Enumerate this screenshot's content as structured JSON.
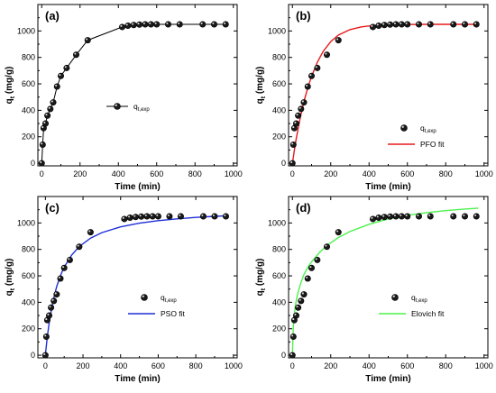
{
  "chart_data": [
    {
      "type": "line",
      "panel_label": "(a)",
      "xlabel": "Time (min)",
      "ylabel": "q",
      "ylabel_sub": "t",
      "ylabel_unit": " (mg/g)",
      "xlim": [
        -20,
        1020
      ],
      "ylim": [
        -20,
        1200
      ],
      "xticks": [
        0,
        200,
        400,
        600,
        800,
        1000
      ],
      "yticks": [
        0,
        200,
        400,
        600,
        800,
        1000
      ],
      "grid": false,
      "legend_position": "center-right",
      "series": [
        {
          "name": "q",
          "name_sub": "t,exp",
          "kind": "line-markers",
          "color": "#000000",
          "x": [
            0,
            5,
            10,
            20,
            30,
            45,
            60,
            80,
            100,
            130,
            180,
            240,
            420,
            450,
            480,
            510,
            540,
            570,
            600,
            660,
            720,
            840,
            900,
            960
          ],
          "y": [
            0,
            140,
            265,
            300,
            360,
            410,
            460,
            580,
            660,
            720,
            820,
            930,
            1030,
            1040,
            1045,
            1048,
            1050,
            1050,
            1050,
            1050,
            1050,
            1050,
            1050,
            1050
          ]
        }
      ]
    },
    {
      "type": "line",
      "panel_label": "(b)",
      "xlabel": "Time (min)",
      "ylabel": "q",
      "ylabel_sub": "t",
      "ylabel_unit": " (mg/g)",
      "xlim": [
        -20,
        1020
      ],
      "ylim": [
        -20,
        1200
      ],
      "xticks": [
        0,
        200,
        400,
        600,
        800,
        1000
      ],
      "yticks": [
        0,
        200,
        400,
        600,
        800,
        1000
      ],
      "grid": false,
      "legend_position": "center-right",
      "series": [
        {
          "name": "q",
          "name_sub": "t,exp",
          "kind": "markers",
          "color": "#000000",
          "x": [
            0,
            5,
            10,
            20,
            30,
            45,
            60,
            80,
            100,
            130,
            180,
            240,
            420,
            450,
            480,
            510,
            540,
            570,
            600,
            660,
            720,
            840,
            900,
            960
          ],
          "y": [
            0,
            140,
            265,
            300,
            360,
            410,
            460,
            580,
            660,
            720,
            820,
            930,
            1030,
            1040,
            1045,
            1048,
            1050,
            1050,
            1050,
            1050,
            1050,
            1050,
            1050,
            1050
          ]
        },
        {
          "name": "PFO fit",
          "kind": "line",
          "color": "#e8191b",
          "x": [
            0,
            10,
            20,
            40,
            60,
            80,
            100,
            130,
            160,
            200,
            240,
            300,
            360,
            420,
            500,
            600,
            700,
            800,
            900,
            970
          ],
          "y": [
            0,
            98,
            187,
            340,
            466,
            571,
            657,
            764,
            845,
            920,
            969,
            1010,
            1031,
            1041,
            1046,
            1049,
            1050,
            1050,
            1050,
            1050
          ]
        }
      ]
    },
    {
      "type": "line",
      "panel_label": "(c)",
      "xlabel": "Time (min)",
      "ylabel": "q",
      "ylabel_sub": "t",
      "ylabel_unit": " (mg/g)",
      "xlim": [
        -40,
        1020
      ],
      "ylim": [
        -20,
        1200
      ],
      "xticks": [
        0,
        200,
        400,
        600,
        800,
        1000
      ],
      "yticks": [
        0,
        200,
        400,
        600,
        800,
        1000
      ],
      "grid": false,
      "legend_position": "center-right",
      "series": [
        {
          "name": "q",
          "name_sub": "t,exp",
          "kind": "markers",
          "color": "#000000",
          "x": [
            0,
            5,
            10,
            20,
            30,
            45,
            60,
            80,
            100,
            130,
            180,
            240,
            420,
            450,
            480,
            510,
            540,
            570,
            600,
            660,
            720,
            840,
            900,
            960
          ],
          "y": [
            0,
            140,
            265,
            300,
            360,
            410,
            460,
            580,
            660,
            720,
            820,
            930,
            1030,
            1040,
            1045,
            1048,
            1050,
            1050,
            1050,
            1050,
            1050,
            1050,
            1050,
            1050
          ]
        },
        {
          "name": "PSO fit",
          "kind": "line",
          "color": "#1f2fd6",
          "x": [
            0,
            5,
            10,
            20,
            40,
            60,
            80,
            100,
            140,
            180,
            240,
            300,
            400,
            500,
            600,
            700,
            800,
            900,
            970
          ],
          "y": [
            0,
            72,
            136,
            244,
            405,
            518,
            602,
            666,
            758,
            822,
            885,
            927,
            970,
            998,
            1017,
            1031,
            1042,
            1050,
            1055
          ]
        }
      ]
    },
    {
      "type": "line",
      "panel_label": "(d)",
      "xlabel": "Time (min)",
      "ylabel": "q",
      "ylabel_sub": "t",
      "ylabel_unit": " (mg/g)",
      "xlim": [
        -20,
        1020
      ],
      "ylim": [
        -20,
        1200
      ],
      "xticks": [
        0,
        200,
        400,
        600,
        800,
        1000
      ],
      "yticks": [
        0,
        200,
        400,
        600,
        800,
        1000
      ],
      "grid": false,
      "legend_position": "center-right",
      "series": [
        {
          "name": "q",
          "name_sub": "t,exp",
          "kind": "markers",
          "color": "#000000",
          "x": [
            0,
            5,
            10,
            20,
            30,
            45,
            60,
            80,
            100,
            130,
            180,
            240,
            420,
            450,
            480,
            510,
            540,
            570,
            600,
            660,
            720,
            840,
            900,
            960
          ],
          "y": [
            0,
            140,
            265,
            300,
            360,
            410,
            460,
            580,
            660,
            720,
            820,
            930,
            1030,
            1040,
            1045,
            1048,
            1050,
            1050,
            1050,
            1050,
            1050,
            1050,
            1050,
            1050
          ]
        },
        {
          "name": "Elovich fit",
          "kind": "line",
          "color": "#4cf24c",
          "x": [
            0,
            3,
            8,
            15,
            25,
            40,
            60,
            80,
            100,
            140,
            180,
            240,
            300,
            400,
            500,
            600,
            700,
            800,
            900,
            970
          ],
          "y": [
            0,
            155,
            285,
            370,
            450,
            530,
            610,
            665,
            705,
            775,
            830,
            890,
            935,
            990,
            1030,
            1058,
            1078,
            1093,
            1105,
            1112
          ]
        }
      ]
    }
  ]
}
